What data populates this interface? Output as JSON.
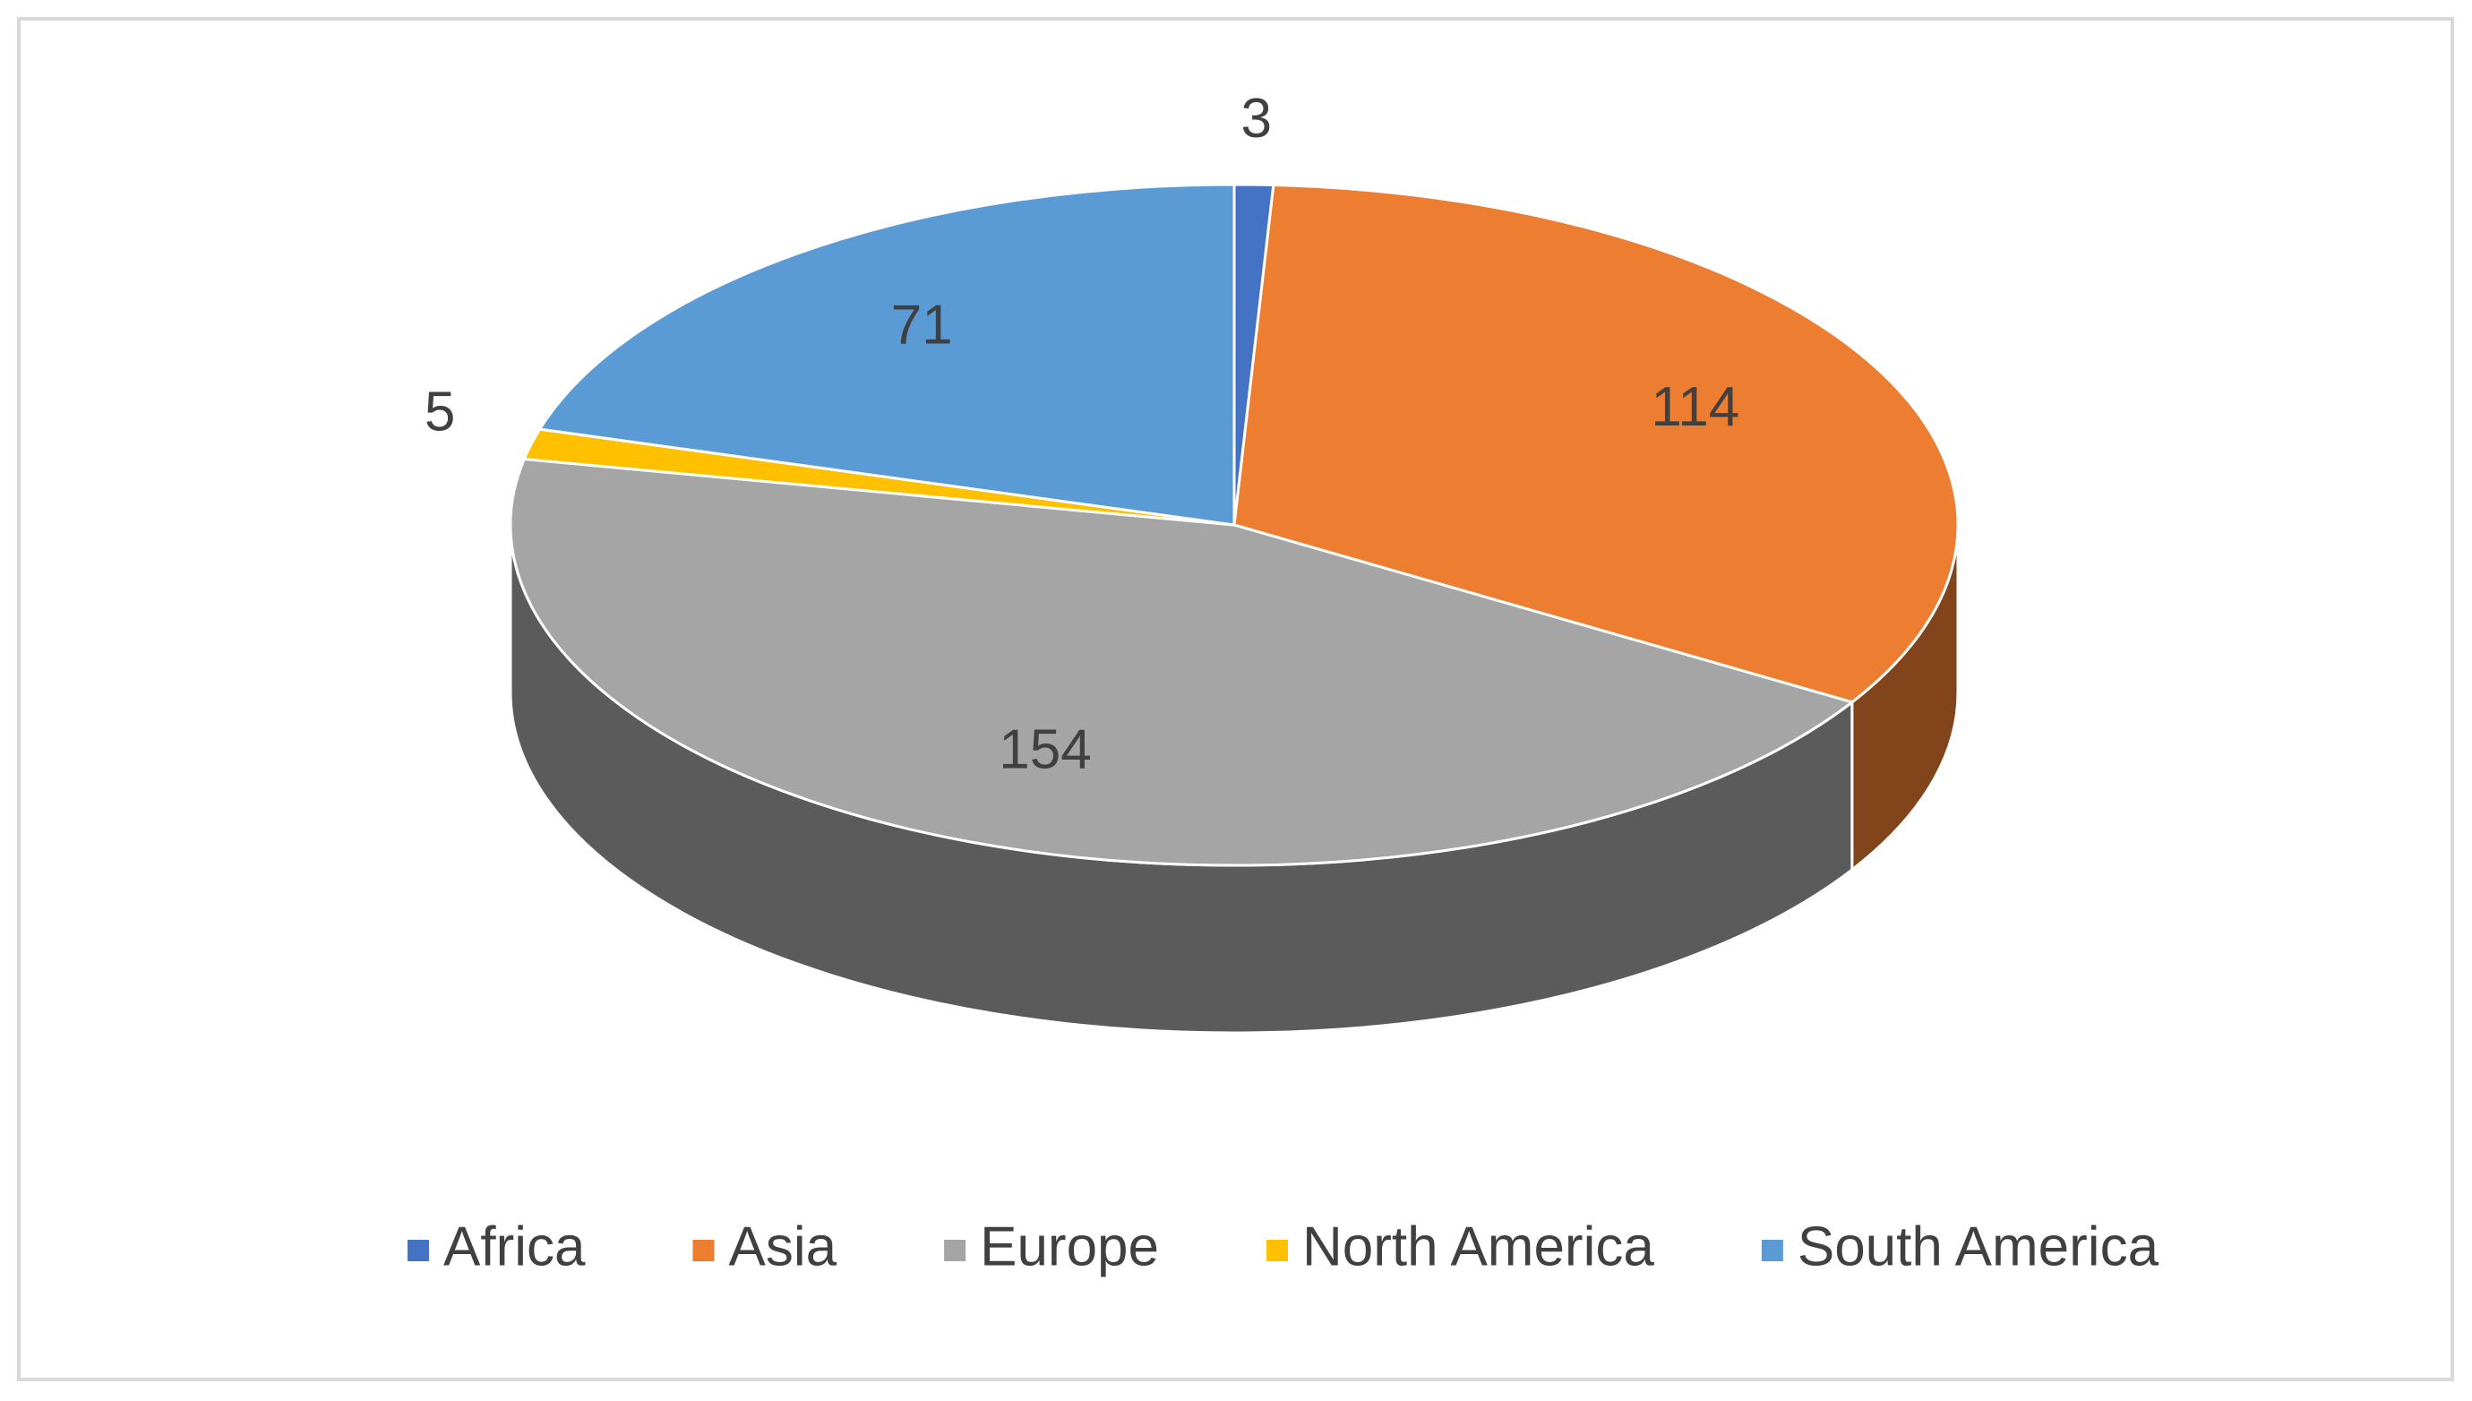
{
  "chart_data": {
    "type": "pie",
    "categories": [
      "Africa",
      "Asia",
      "Europe",
      "North America",
      "South America"
    ],
    "values": [
      3,
      114,
      154,
      5,
      71
    ],
    "colors": [
      "#4472c4",
      "#ed7d31",
      "#a5a5a5",
      "#ffc000",
      "#5b9bd5"
    ],
    "legend": "bottom"
  }
}
